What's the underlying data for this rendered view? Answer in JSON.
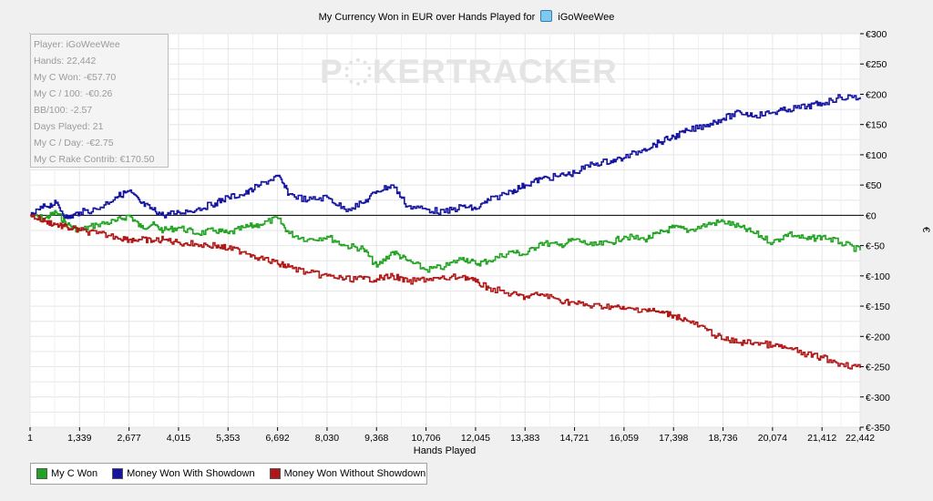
{
  "title_prefix": "My Currency Won in EUR over Hands Played for",
  "player_name": "iGoWeeWee",
  "watermark": {
    "left": "P",
    "right": "KERTRACKER"
  },
  "stats": [
    "Player: iGoWeeWee",
    "Hands: 22,442",
    "My C Won: -€57.70",
    "My C / 100: -€0.26",
    "BB/100: -2.57",
    "Days Played: 21",
    "My C / Day: -€2.75",
    "My C Rake Contrib: €170.50"
  ],
  "colors": {
    "green": "#22a322",
    "blue": "#1414a0",
    "red": "#b01818",
    "grid": "#e6e6e6"
  },
  "chart_data": {
    "type": "line",
    "xlabel": "Hands Played",
    "ylabel": "€",
    "xlim": [
      1,
      22442
    ],
    "ylim": [
      -350,
      300
    ],
    "x_ticks": [
      1,
      1339,
      2677,
      4015,
      5353,
      6692,
      8030,
      9368,
      10706,
      12045,
      13383,
      14721,
      16059,
      17398,
      18736,
      20074,
      21412,
      22442
    ],
    "x_tick_labels": [
      "1",
      "1,339",
      "2,677",
      "4,015",
      "5,353",
      "6,692",
      "8,030",
      "9,368",
      "10,706",
      "12,045",
      "13,383",
      "14,721",
      "16,059",
      "17,398",
      "18,736",
      "20,074",
      "21,412",
      "22,442"
    ],
    "y_ticks": [
      300,
      250,
      200,
      150,
      100,
      50,
      0,
      -50,
      -100,
      -150,
      -200,
      -250,
      -300,
      -350
    ],
    "y_tick_labels": [
      "€300",
      "€250",
      "€200",
      "€150",
      "€100",
      "€50",
      "€0",
      "€-50",
      "€-100",
      "€-150",
      "€-200",
      "€-250",
      "€-300",
      "€-350"
    ],
    "legend_position": "bottom-left",
    "series": [
      {
        "name": "My C Won",
        "color": "#22a322",
        "x": [
          1,
          400,
          700,
          1000,
          1339,
          1800,
          2300,
          2677,
          3000,
          3300,
          3600,
          4015,
          4500,
          5000,
          5353,
          5800,
          6200,
          6692,
          7000,
          7500,
          8030,
          8500,
          9000,
          9368,
          9800,
          10200,
          10706,
          11200,
          11700,
          12045,
          12400,
          13000,
          13383,
          13800,
          14300,
          14721,
          15200,
          15700,
          16059,
          16600,
          17000,
          17398,
          17800,
          18300,
          18736,
          19200,
          19600,
          20074,
          20500,
          21000,
          21412,
          21900,
          22442
        ],
        "y": [
          0,
          -5,
          5,
          -15,
          -25,
          -15,
          -10,
          0,
          -20,
          -15,
          -25,
          -20,
          -30,
          -25,
          -30,
          -20,
          -15,
          -5,
          -30,
          -40,
          -35,
          -50,
          -55,
          -85,
          -60,
          -75,
          -90,
          -85,
          -70,
          -80,
          -75,
          -60,
          -65,
          -45,
          -50,
          -40,
          -50,
          -45,
          -35,
          -40,
          -30,
          -20,
          -25,
          -15,
          -10,
          -20,
          -30,
          -45,
          -30,
          -40,
          -35,
          -45,
          -58
        ]
      },
      {
        "name": "Money Won With Showdown",
        "color": "#1414a0",
        "x": [
          1,
          400,
          700,
          1000,
          1339,
          1800,
          2300,
          2677,
          3000,
          3300,
          3600,
          4015,
          4500,
          5000,
          5353,
          5800,
          6200,
          6692,
          7000,
          7500,
          8030,
          8500,
          9000,
          9368,
          9800,
          10200,
          10706,
          11200,
          11700,
          12045,
          12400,
          13000,
          13383,
          13800,
          14300,
          14721,
          15200,
          15700,
          16059,
          16600,
          17000,
          17398,
          17800,
          18300,
          18736,
          19200,
          19600,
          20074,
          20500,
          21000,
          21412,
          21900,
          22442
        ],
        "y": [
          0,
          15,
          20,
          -5,
          5,
          10,
          30,
          40,
          20,
          10,
          0,
          5,
          10,
          20,
          30,
          35,
          50,
          65,
          35,
          25,
          30,
          10,
          20,
          40,
          50,
          15,
          10,
          5,
          15,
          10,
          25,
          40,
          50,
          60,
          65,
          70,
          85,
          90,
          95,
          110,
          120,
          130,
          140,
          150,
          160,
          170,
          165,
          170,
          175,
          180,
          185,
          195,
          195
        ]
      },
      {
        "name": "Money Won Without Showdown",
        "color": "#b01818",
        "x": [
          1,
          400,
          700,
          1000,
          1339,
          1800,
          2300,
          2677,
          3000,
          3300,
          3600,
          4015,
          4500,
          5000,
          5353,
          5800,
          6200,
          6692,
          7000,
          7500,
          8030,
          8500,
          9000,
          9368,
          9800,
          10200,
          10706,
          11200,
          11700,
          12045,
          12400,
          13000,
          13383,
          13800,
          14300,
          14721,
          15200,
          15700,
          16059,
          16600,
          17000,
          17398,
          17800,
          18300,
          18736,
          19200,
          19600,
          20074,
          20500,
          21000,
          21412,
          21900,
          22442
        ],
        "y": [
          0,
          -10,
          -15,
          -20,
          -25,
          -30,
          -35,
          -40,
          -40,
          -42,
          -40,
          -45,
          -48,
          -50,
          -55,
          -60,
          -70,
          -80,
          -85,
          -95,
          -100,
          -105,
          -105,
          -105,
          -100,
          -110,
          -105,
          -105,
          -100,
          -110,
          -120,
          -130,
          -135,
          -130,
          -140,
          -145,
          -150,
          -150,
          -155,
          -155,
          -160,
          -165,
          -175,
          -190,
          -205,
          -210,
          -210,
          -215,
          -220,
          -230,
          -235,
          -245,
          -252
        ]
      }
    ]
  },
  "legend_items": [
    "My C Won",
    "Money Won With Showdown",
    "Money Won Without Showdown"
  ]
}
